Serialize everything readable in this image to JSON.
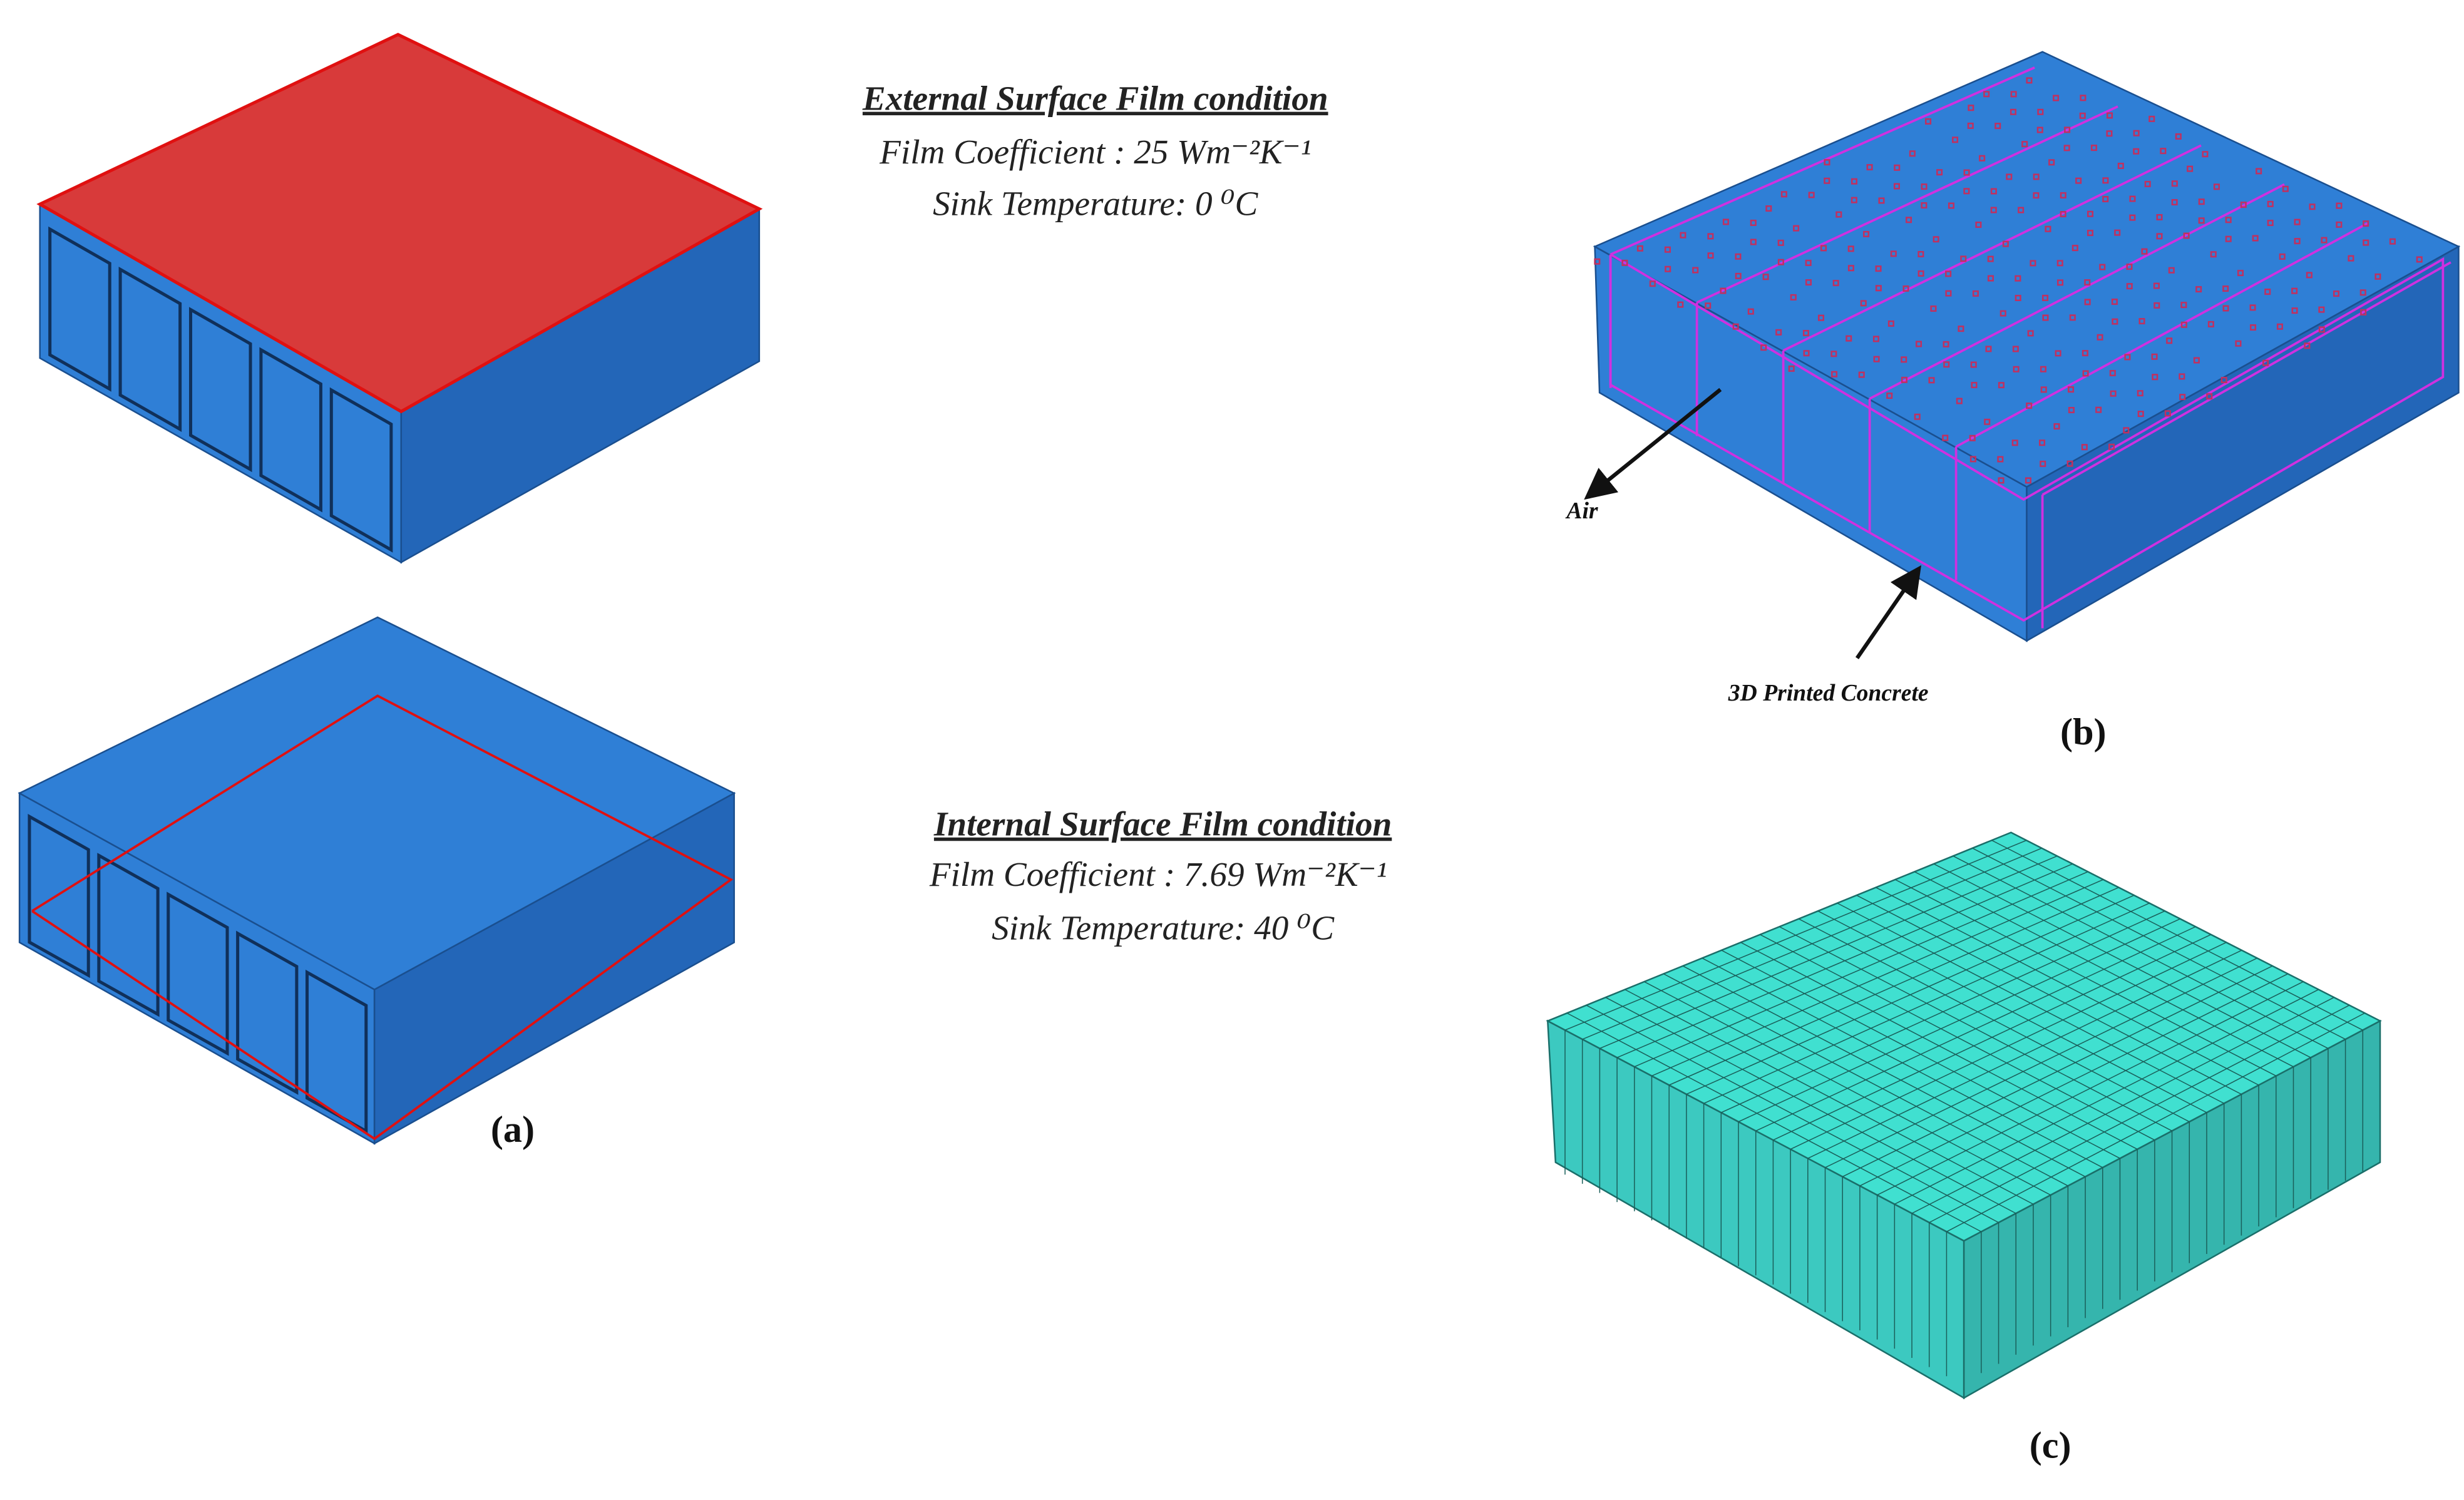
{
  "external": {
    "title": "External Surface Film condition",
    "coefficient": "Film Coefficient : 25 Wm⁻²K⁻¹",
    "sink": "Sink Temperature: 0 ⁰C"
  },
  "internal": {
    "title": "Internal Surface Film condition",
    "coefficient": "Film Coefficient : 7.69 Wm⁻²K⁻¹",
    "sink": "Sink Temperature: 40 ⁰C"
  },
  "annotations": {
    "air": "Air",
    "concrete": "3D Printed Concrete"
  },
  "panels": {
    "a": "(a)",
    "b": "(b)",
    "c": "(c)"
  }
}
